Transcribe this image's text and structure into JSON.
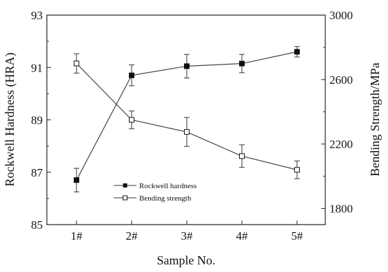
{
  "chart_data": {
    "type": "line",
    "categories": [
      "1#",
      "2#",
      "3#",
      "4#",
      "5#"
    ],
    "xlabel": "Sample No.",
    "ylabel_left": "Rockwell Hardness (HRA)",
    "ylabel_right": "Bending Strength/MPa",
    "ylim_left": [
      85,
      93
    ],
    "yticks_left": [
      85,
      87,
      89,
      91,
      93
    ],
    "ylim_right": [
      1700,
      3000
    ],
    "yticks_right": [
      1800,
      2200,
      2600,
      3000
    ],
    "grid": false,
    "legend_position": "lower-center",
    "series": [
      {
        "name": "Rockwell hardness",
        "axis": "left",
        "marker": "filled-square",
        "values": [
          86.7,
          90.7,
          91.05,
          91.15,
          91.6
        ],
        "error": [
          0.45,
          0.4,
          0.45,
          0.35,
          0.2
        ]
      },
      {
        "name": "Bending strength",
        "axis": "right",
        "marker": "open-square",
        "values": [
          2700,
          2350,
          2275,
          2125,
          2040
        ],
        "error": [
          60,
          55,
          90,
          70,
          55
        ]
      }
    ]
  }
}
